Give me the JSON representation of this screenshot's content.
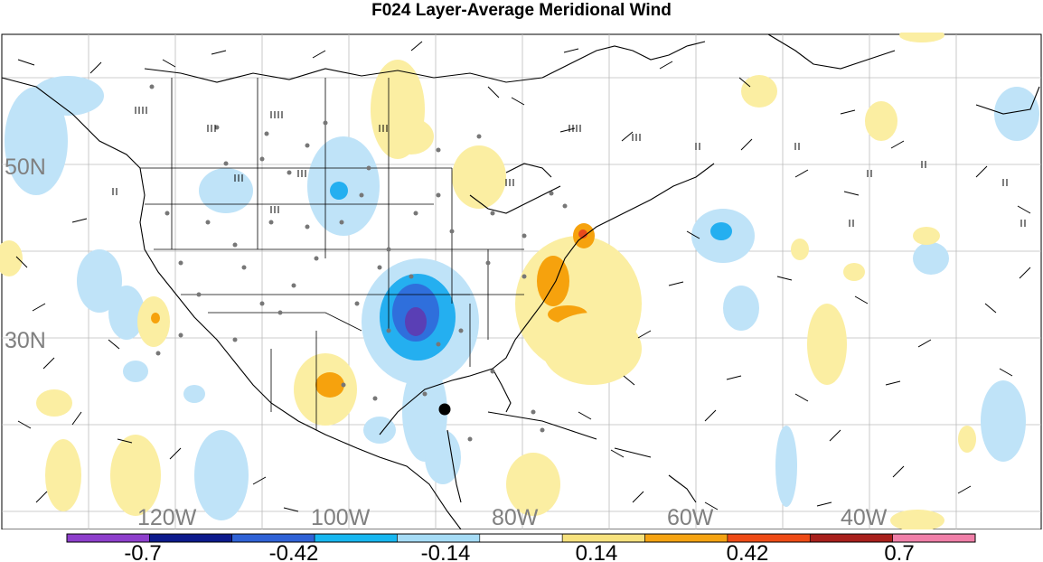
{
  "title": "F024 Layer-Average Meridional Wind",
  "colors": {
    "background": "#ffffff",
    "land_outline": "#000000",
    "grid": "#bbbbbb",
    "station_dot": "#777777",
    "neg_strong": "#5a3fb5",
    "neg_mid": "#2f6fdc",
    "neg_light": "#24aff0",
    "neg_faint": "#bfe3f8",
    "pos_faint": "#fbeea2",
    "pos_mid": "#f6a20d",
    "pos_strong": "#e84b1c"
  },
  "map": {
    "lat_labels": [
      "50N",
      "30N"
    ],
    "lon_labels": [
      "120W",
      "100W",
      "80W",
      "60W",
      "40W"
    ]
  },
  "colorbar": {
    "tick_labels": [
      "-0.7",
      "-0.42",
      "-0.14",
      "0.14",
      "0.42",
      "0.7"
    ],
    "bins": [
      {
        "color": "#8e3fcc"
      },
      {
        "color": "#0c1a8c"
      },
      {
        "color": "#2f62d6"
      },
      {
        "color": "#17b7f0"
      },
      {
        "color": "#a6dcf6"
      },
      {
        "color": "#ffffff"
      },
      {
        "color": "#f7e27e"
      },
      {
        "color": "#f5a312"
      },
      {
        "color": "#ee4b16"
      },
      {
        "color": "#a8201c"
      },
      {
        "color": "#f07fa8"
      }
    ]
  }
}
